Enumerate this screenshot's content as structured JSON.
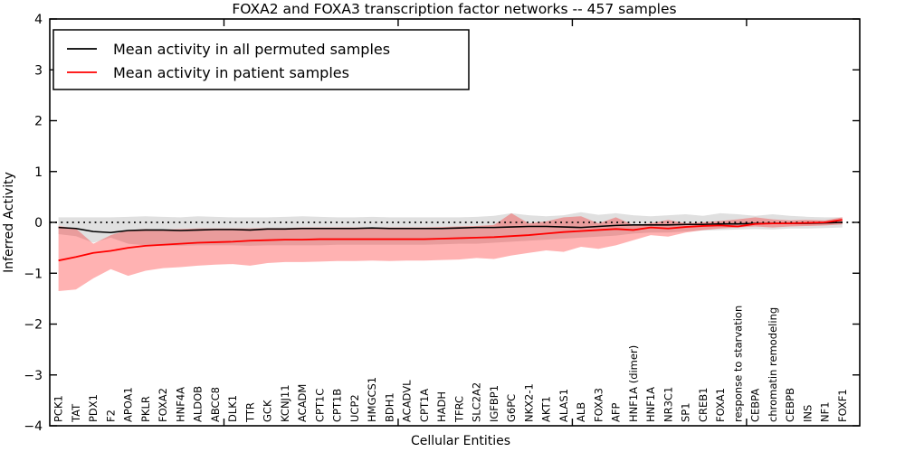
{
  "figure": {
    "background": "#ffffff"
  },
  "chart_data": {
    "type": "line",
    "title": "FOXA2 and FOXA3 transcription factor networks -- 457 samples",
    "xlabel": "Cellular Entities",
    "ylabel": "Inferred Activity",
    "ylim": [
      -4,
      4
    ],
    "yticks": [
      4,
      3,
      2,
      1,
      0,
      -1,
      -2,
      -3,
      -4
    ],
    "x_major_ticks": [
      10,
      20,
      30,
      40
    ],
    "grid": false,
    "legend_position": "upper left",
    "zero_line": {
      "value": 0,
      "style": "dotted",
      "color": "#000000"
    },
    "axis_color": "#000000",
    "categories": [
      "PCK1",
      "TAT",
      "PDX1",
      "F2",
      "APOA1",
      "PKLR",
      "FOXA2",
      "HNF4A",
      "ALDOB",
      "ABCC8",
      "DLK1",
      "TTR",
      "GCK",
      "KCNJ11",
      "ACADM",
      "CPT1C",
      "CPT1B",
      "UCP2",
      "HMGCS1",
      "BDH1",
      "ACADVL",
      "CPT1A",
      "HADH",
      "TFRC",
      "SLC2A2",
      "IGFBP1",
      "G6PC",
      "NKX2-1",
      "AKT1",
      "ALAS1",
      "ALB",
      "FOXA3",
      "AFP",
      "HNF1A (dimer)",
      "HNF1A",
      "NR3C1",
      "SP1",
      "CREB1",
      "FOXA1",
      "response to starvation",
      "CEBPA",
      "chromatin remodeling",
      "CEBPB",
      "INS",
      "NF1",
      "FOXF1"
    ],
    "series": [
      {
        "name": "Mean activity in all permuted samples",
        "color": "#000000",
        "line_width": 1.6,
        "band_color": "#000000",
        "band_opacity": 0.12,
        "values": [
          -0.1,
          -0.12,
          -0.18,
          -0.2,
          -0.16,
          -0.15,
          -0.15,
          -0.16,
          -0.15,
          -0.14,
          -0.14,
          -0.15,
          -0.13,
          -0.13,
          -0.12,
          -0.12,
          -0.12,
          -0.12,
          -0.11,
          -0.12,
          -0.12,
          -0.12,
          -0.12,
          -0.11,
          -0.1,
          -0.1,
          -0.09,
          -0.08,
          -0.08,
          -0.09,
          -0.1,
          -0.08,
          -0.06,
          -0.05,
          -0.05,
          -0.05,
          -0.04,
          -0.04,
          -0.03,
          -0.03,
          -0.02,
          -0.02,
          -0.02,
          -0.02,
          -0.01,
          0.0
        ],
        "band_low": [
          -0.23,
          -0.27,
          -0.4,
          -0.3,
          -0.42,
          -0.45,
          -0.46,
          -0.46,
          -0.45,
          -0.45,
          -0.45,
          -0.46,
          -0.45,
          -0.45,
          -0.45,
          -0.45,
          -0.44,
          -0.44,
          -0.44,
          -0.44,
          -0.44,
          -0.44,
          -0.43,
          -0.42,
          -0.42,
          -0.4,
          -0.38,
          -0.36,
          -0.34,
          -0.32,
          -0.3,
          -0.28,
          -0.26,
          -0.22,
          -0.2,
          -0.2,
          -0.18,
          -0.16,
          -0.15,
          -0.14,
          -0.13,
          -0.14,
          -0.12,
          -0.12,
          -0.11,
          -0.1
        ],
        "band_high": [
          0.1,
          0.1,
          0.1,
          0.1,
          0.11,
          0.12,
          0.11,
          0.1,
          0.12,
          0.11,
          0.1,
          0.1,
          0.1,
          0.11,
          0.12,
          0.11,
          0.1,
          0.1,
          0.11,
          0.1,
          0.1,
          0.1,
          0.1,
          0.1,
          0.11,
          0.13,
          0.18,
          0.14,
          0.12,
          0.14,
          0.2,
          0.15,
          0.18,
          0.14,
          0.12,
          0.14,
          0.16,
          0.13,
          0.18,
          0.16,
          0.13,
          0.16,
          0.13,
          0.11,
          0.1,
          0.1
        ]
      },
      {
        "name": "Mean activity in patient samples",
        "color": "#ff0000",
        "line_width": 1.8,
        "band_color": "#ff0000",
        "band_opacity": 0.3,
        "values": [
          -0.75,
          -0.68,
          -0.6,
          -0.56,
          -0.5,
          -0.46,
          -0.44,
          -0.42,
          -0.4,
          -0.39,
          -0.38,
          -0.36,
          -0.35,
          -0.34,
          -0.34,
          -0.33,
          -0.33,
          -0.33,
          -0.33,
          -0.33,
          -0.33,
          -0.33,
          -0.32,
          -0.31,
          -0.3,
          -0.29,
          -0.27,
          -0.25,
          -0.22,
          -0.19,
          -0.17,
          -0.15,
          -0.13,
          -0.15,
          -0.1,
          -0.12,
          -0.09,
          -0.07,
          -0.06,
          -0.08,
          -0.03,
          -0.02,
          -0.02,
          -0.01,
          0.0,
          0.05
        ],
        "band_low": [
          -1.35,
          -1.32,
          -1.1,
          -0.92,
          -1.05,
          -0.95,
          -0.9,
          -0.88,
          -0.85,
          -0.83,
          -0.82,
          -0.85,
          -0.8,
          -0.78,
          -0.78,
          -0.77,
          -0.76,
          -0.76,
          -0.75,
          -0.76,
          -0.75,
          -0.75,
          -0.74,
          -0.73,
          -0.7,
          -0.72,
          -0.65,
          -0.6,
          -0.55,
          -0.58,
          -0.48,
          -0.52,
          -0.45,
          -0.35,
          -0.25,
          -0.28,
          -0.2,
          -0.15,
          -0.12,
          -0.1,
          -0.08,
          -0.1,
          -0.08,
          -0.07,
          -0.06,
          -0.04
        ],
        "band_high": [
          -0.07,
          -0.12,
          -0.42,
          -0.25,
          -0.15,
          -0.13,
          -0.14,
          -0.13,
          -0.12,
          -0.12,
          -0.12,
          -0.12,
          -0.11,
          -0.11,
          -0.1,
          -0.1,
          -0.1,
          -0.1,
          -0.1,
          -0.1,
          -0.1,
          -0.1,
          -0.09,
          -0.08,
          -0.07,
          -0.05,
          0.18,
          -0.02,
          0.02,
          0.1,
          0.12,
          -0.02,
          0.1,
          -0.05,
          -0.02,
          0.05,
          -0.02,
          0.0,
          0.03,
          0.06,
          0.1,
          0.06,
          0.04,
          0.05,
          0.04,
          0.1
        ]
      }
    ],
    "legend": [
      {
        "label": "Mean activity in all permuted samples",
        "color": "#000000"
      },
      {
        "label": "Mean activity in patient samples",
        "color": "#ff0000"
      }
    ]
  }
}
